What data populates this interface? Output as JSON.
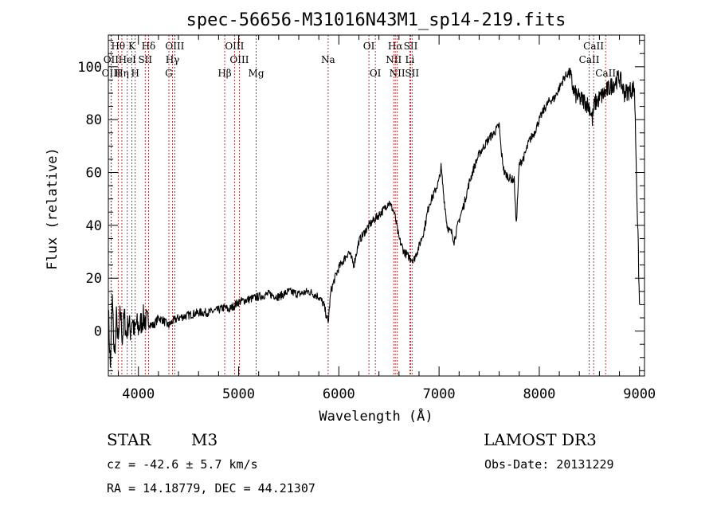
{
  "chart_data": {
    "type": "line",
    "title": "spec-56656-M31016N43M1_sp14-219.fits",
    "xlabel": "Wavelength (Å)",
    "ylabel": "Flux (relative)",
    "xlim": [
      3700,
      9050
    ],
    "ylim": [
      -17,
      112
    ],
    "xticks": [
      4000,
      5000,
      6000,
      7000,
      8000,
      9000
    ],
    "yticks": [
      0,
      20,
      40,
      60,
      80,
      100
    ],
    "series": [
      {
        "name": "spectrum",
        "x": [
          3700,
          3720,
          3740,
          3760,
          3780,
          3800,
          3820,
          3840,
          3860,
          3880,
          3900,
          3920,
          3940,
          3960,
          3980,
          4000,
          4050,
          4100,
          4150,
          4200,
          4250,
          4300,
          4350,
          4400,
          4500,
          4600,
          4700,
          4800,
          4861,
          4900,
          5000,
          5100,
          5200,
          5300,
          5400,
          5500,
          5600,
          5700,
          5800,
          5850,
          5893,
          5920,
          5960,
          6000,
          6050,
          6100,
          6150,
          6200,
          6250,
          6300,
          6350,
          6400,
          6450,
          6500,
          6550,
          6563,
          6600,
          6650,
          6700,
          6750,
          6800,
          6850,
          6900,
          6950,
          7000,
          7020,
          7050,
          7080,
          7100,
          7130,
          7150,
          7200,
          7250,
          7300,
          7350,
          7400,
          7450,
          7500,
          7550,
          7600,
          7620,
          7650,
          7700,
          7750,
          7770,
          7800,
          7850,
          7900,
          7950,
          8000,
          8050,
          8100,
          8150,
          8200,
          8250,
          8300,
          8350,
          8400,
          8450,
          8500,
          8530,
          8550,
          8600,
          8650,
          8700,
          8750,
          8800,
          8850,
          8900,
          8950,
          9000
        ],
        "y": [
          8,
          -14,
          12,
          -10,
          5,
          -5,
          8,
          -3,
          6,
          -2,
          4,
          0,
          5,
          -1,
          3,
          1,
          5,
          3,
          2,
          5,
          4,
          2,
          4,
          5,
          6,
          7,
          7,
          8,
          9,
          8,
          11,
          12,
          13,
          14,
          13,
          15,
          14,
          15,
          13,
          10,
          3,
          15,
          20,
          24,
          27,
          30,
          25,
          34,
          37,
          40,
          42,
          44,
          46,
          49,
          45,
          43,
          35,
          30,
          28,
          27,
          32,
          38,
          48,
          52,
          57,
          62,
          50,
          40,
          38,
          37,
          34,
          42,
          48,
          56,
          62,
          67,
          70,
          73,
          75,
          78,
          68,
          60,
          58,
          57,
          40,
          63,
          66,
          72,
          75,
          80,
          84,
          87,
          88,
          92,
          96,
          98,
          90,
          88,
          87,
          85,
          80,
          86,
          88,
          90,
          92,
          94,
          96,
          90,
          91,
          92,
          10
        ]
      }
    ],
    "lines": [
      {
        "label": "Hθ",
        "wl": 3798,
        "row": 0
      },
      {
        "label": "OII",
        "wl": 3727,
        "row": 1
      },
      {
        "label": "OIII",
        "wl": 3729,
        "row": 2
      },
      {
        "label": "K",
        "wl": 3934,
        "row": 0
      },
      {
        "label": "HeI",
        "wl": 3889,
        "row": 1
      },
      {
        "label": "Hη",
        "wl": 3835,
        "row": 2
      },
      {
        "label": "SII",
        "wl": 4068,
        "row": 1
      },
      {
        "label": "H",
        "wl": 3968,
        "row": 2
      },
      {
        "label": "Hδ",
        "wl": 4101,
        "row": 0
      },
      {
        "label": "OIII",
        "wl": 4363,
        "row": 0
      },
      {
        "label": "Hγ",
        "wl": 4340,
        "row": 1
      },
      {
        "label": "G",
        "wl": 4304,
        "row": 2
      },
      {
        "label": "Hβ",
        "wl": 4861,
        "row": 2
      },
      {
        "label": "OIII",
        "wl": 4959,
        "row": 0
      },
      {
        "label": "OIII",
        "wl": 5007,
        "row": 1
      },
      {
        "label": "Mg",
        "wl": 5175,
        "row": 2
      },
      {
        "label": "Na",
        "wl": 5893,
        "row": 1
      },
      {
        "label": "OI",
        "wl": 6300,
        "row": 0
      },
      {
        "label": "OI",
        "wl": 6364,
        "row": 2
      },
      {
        "label": "Hα",
        "wl": 6563,
        "row": 0
      },
      {
        "label": "NII",
        "wl": 6548,
        "row": 1
      },
      {
        "label": "NII",
        "wl": 6583,
        "row": 2
      },
      {
        "label": "SII",
        "wl": 6717,
        "row": 0
      },
      {
        "label": "Li",
        "wl": 6708,
        "row": 1
      },
      {
        "label": "SII",
        "wl": 6731,
        "row": 2
      },
      {
        "label": "CaII",
        "wl": 8542,
        "row": 0
      },
      {
        "label": "CaII",
        "wl": 8498,
        "row": 1
      },
      {
        "label": "CaII",
        "wl": 8662,
        "row": 2
      }
    ]
  },
  "info": {
    "object_type": "STAR",
    "subclass": "M3",
    "survey": "LAMOST DR3",
    "cz": "cz = -42.6 ± 5.7 km/s",
    "obs_date": "Obs-Date: 20131229",
    "coords": "RA =  14.18779, DEC =  44.21307"
  }
}
